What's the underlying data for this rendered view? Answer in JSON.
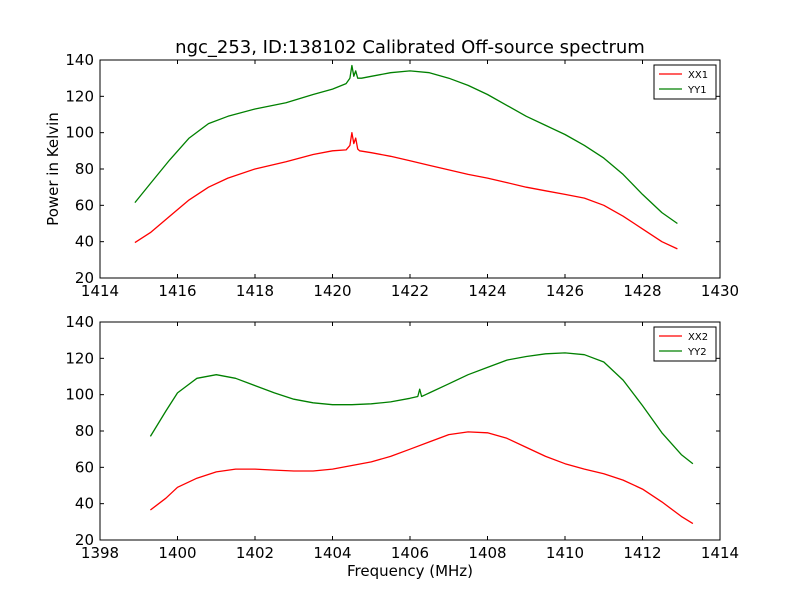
{
  "title": "ngc_253, ID:138102 Calibrated Off-source spectrum",
  "chart_data": [
    {
      "type": "line",
      "ylabel": "Power in Kelvin",
      "xlabel": "",
      "xlim": [
        1414,
        1430
      ],
      "ylim": [
        20,
        140
      ],
      "xticks": [
        "1414",
        "1416",
        "1418",
        "1420",
        "1422",
        "1424",
        "1426",
        "1428",
        "1430"
      ],
      "yticks": [
        "20",
        "40",
        "60",
        "80",
        "100",
        "120",
        "140"
      ],
      "legend": "top-right",
      "grid": false,
      "series": [
        {
          "name": "XX1",
          "color": "#ff0000",
          "x": [
            1414.9,
            1415.3,
            1415.8,
            1416.3,
            1416.8,
            1417.3,
            1418.0,
            1418.8,
            1419.5,
            1420.0,
            1420.35,
            1420.45,
            1420.5,
            1420.55,
            1420.6,
            1420.65,
            1420.7,
            1421.0,
            1421.5,
            1422.0,
            1422.5,
            1423.0,
            1423.5,
            1424.0,
            1424.5,
            1425.0,
            1425.5,
            1426.0,
            1426.5,
            1427.0,
            1427.5,
            1428.0,
            1428.5,
            1428.9
          ],
          "values": [
            39.5,
            45,
            54,
            63,
            70,
            75,
            80,
            84,
            88,
            90,
            90.5,
            93,
            100,
            94,
            97,
            91,
            90,
            89,
            87,
            84.5,
            82,
            79.5,
            77,
            75,
            72.5,
            70,
            68,
            66,
            64,
            60,
            54,
            47,
            40,
            36
          ]
        },
        {
          "name": "YY1",
          "color": "#008000",
          "x": [
            1414.9,
            1415.3,
            1415.8,
            1416.3,
            1416.8,
            1417.3,
            1418.0,
            1418.8,
            1419.5,
            1420.0,
            1420.35,
            1420.45,
            1420.5,
            1420.55,
            1420.6,
            1420.65,
            1420.75,
            1421.0,
            1421.5,
            1422.0,
            1422.5,
            1423.0,
            1423.5,
            1424.0,
            1424.5,
            1425.0,
            1425.5,
            1426.0,
            1426.5,
            1427.0,
            1427.5,
            1428.0,
            1428.5,
            1428.9
          ],
          "values": [
            61.5,
            72,
            85,
            97,
            105,
            109,
            113,
            116.5,
            121,
            124,
            127,
            130,
            137,
            131,
            134,
            130,
            130,
            131,
            133,
            134,
            133,
            130,
            126,
            121,
            115,
            109,
            104,
            99,
            93,
            86,
            77,
            66,
            56,
            50
          ]
        }
      ]
    },
    {
      "type": "line",
      "ylabel": "",
      "xlabel": "Frequency (MHz)",
      "xlim": [
        1398,
        1414
      ],
      "ylim": [
        20,
        140
      ],
      "xticks": [
        "1398",
        "1400",
        "1402",
        "1404",
        "1406",
        "1408",
        "1410",
        "1412",
        "1414"
      ],
      "yticks": [
        "20",
        "40",
        "60",
        "80",
        "100",
        "120",
        "140"
      ],
      "legend": "top-right",
      "grid": false,
      "series": [
        {
          "name": "XX2",
          "color": "#ff0000",
          "x": [
            1399.3,
            1399.7,
            1400.0,
            1400.5,
            1401.0,
            1401.5,
            1402.0,
            1402.5,
            1403.0,
            1403.5,
            1404.0,
            1404.5,
            1405.0,
            1405.5,
            1406.0,
            1406.5,
            1407.0,
            1407.5,
            1408.0,
            1408.5,
            1409.0,
            1409.5,
            1410.0,
            1410.5,
            1411.0,
            1411.5,
            1412.0,
            1412.5,
            1413.0,
            1413.3
          ],
          "values": [
            36.5,
            43,
            49,
            54,
            57.5,
            59,
            59,
            58.5,
            58,
            58,
            59,
            61,
            63,
            66,
            70,
            74,
            78,
            79.5,
            79,
            76,
            71,
            66,
            62,
            59,
            56.5,
            53,
            48,
            41,
            33,
            29
          ]
        },
        {
          "name": "YY2",
          "color": "#008000",
          "x": [
            1399.3,
            1399.7,
            1400.0,
            1400.5,
            1401.0,
            1401.5,
            1402.0,
            1402.5,
            1403.0,
            1403.5,
            1404.0,
            1404.5,
            1405.0,
            1405.5,
            1406.0,
            1406.2,
            1406.25,
            1406.3,
            1406.4,
            1406.5,
            1407.0,
            1407.5,
            1408.0,
            1408.5,
            1409.0,
            1409.5,
            1410.0,
            1410.5,
            1411.0,
            1411.5,
            1412.0,
            1412.5,
            1413.0,
            1413.3
          ],
          "values": [
            77,
            91,
            101,
            109,
            111,
            109,
            105,
            101,
            97.5,
            95.5,
            94.5,
            94.5,
            95,
            96,
            98,
            99,
            103,
            99,
            100,
            101,
            106,
            111,
            115,
            119,
            121,
            122.5,
            123,
            122,
            118,
            108,
            94,
            79,
            67,
            62
          ]
        }
      ]
    }
  ]
}
